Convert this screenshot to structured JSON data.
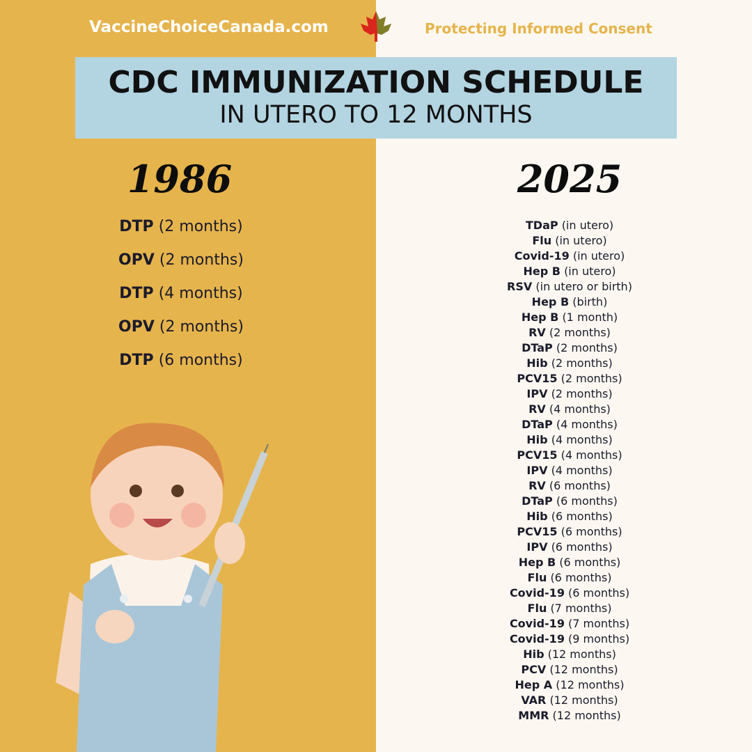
{
  "header": {
    "site": "VaccineChoiceCanada.com",
    "tagline": "Protecting Informed Consent"
  },
  "title": {
    "main": "CDC IMMUNIZATION SCHEDULE",
    "sub": "IN UTERO TO 12 MONTHS"
  },
  "left": {
    "year": "1986",
    "items": [
      {
        "name": "DTP",
        "detail": "(2 months)"
      },
      {
        "name": "OPV",
        "detail": "(2 months)"
      },
      {
        "name": "DTP",
        "detail": "(4 months)"
      },
      {
        "name": "OPV",
        "detail": "(2 months)"
      },
      {
        "name": "DTP",
        "detail": "(6 months)"
      }
    ]
  },
  "right": {
    "year": "2025",
    "items": [
      {
        "name": "TDaP",
        "detail": "(in utero)"
      },
      {
        "name": "Flu",
        "detail": "(in utero)"
      },
      {
        "name": "Covid-19",
        "detail": "(in utero)"
      },
      {
        "name": "Hep B",
        "detail": "(in utero)"
      },
      {
        "name": "RSV",
        "detail": "(in utero or birth)"
      },
      {
        "name": "Hep B",
        "detail": "(birth)"
      },
      {
        "name": "Hep B",
        "detail": "(1 month)"
      },
      {
        "name": "RV",
        "detail": "(2 months)"
      },
      {
        "name": "DTaP",
        "detail": "(2 months)"
      },
      {
        "name": "Hib",
        "detail": "(2 months)"
      },
      {
        "name": "PCV15",
        "detail": "(2 months)"
      },
      {
        "name": "IPV",
        "detail": "(2 months)"
      },
      {
        "name": "RV",
        "detail": "(4 months)"
      },
      {
        "name": "DTaP",
        "detail": "(4 months)"
      },
      {
        "name": "Hib",
        "detail": "(4 months)"
      },
      {
        "name": "PCV15",
        "detail": "(4 months)"
      },
      {
        "name": "IPV",
        "detail": "(4 months)"
      },
      {
        "name": "RV",
        "detail": "(6 months)"
      },
      {
        "name": "DTaP",
        "detail": "(6 months)"
      },
      {
        "name": "Hib",
        "detail": "(6 months)"
      },
      {
        "name": "PCV15",
        "detail": "(6 months)"
      },
      {
        "name": "IPV",
        "detail": "(6 months)"
      },
      {
        "name": "Hep B",
        "detail": "(6 months)"
      },
      {
        "name": "Flu",
        "detail": "(6 months)"
      },
      {
        "name": "Covid-19",
        "detail": "(6 months)"
      },
      {
        "name": "Flu",
        "detail": "(7 months)"
      },
      {
        "name": "Covid-19",
        "detail": "(7 months)"
      },
      {
        "name": "Covid-19",
        "detail": "(9 months)"
      },
      {
        "name": "Hib",
        "detail": "(12 months)"
      },
      {
        "name": "PCV",
        "detail": "(12 months)"
      },
      {
        "name": "Hep A",
        "detail": "(12 months)"
      },
      {
        "name": "VAR",
        "detail": "(12 months)"
      },
      {
        "name": "MMR",
        "detail": "(12 months)"
      }
    ]
  }
}
